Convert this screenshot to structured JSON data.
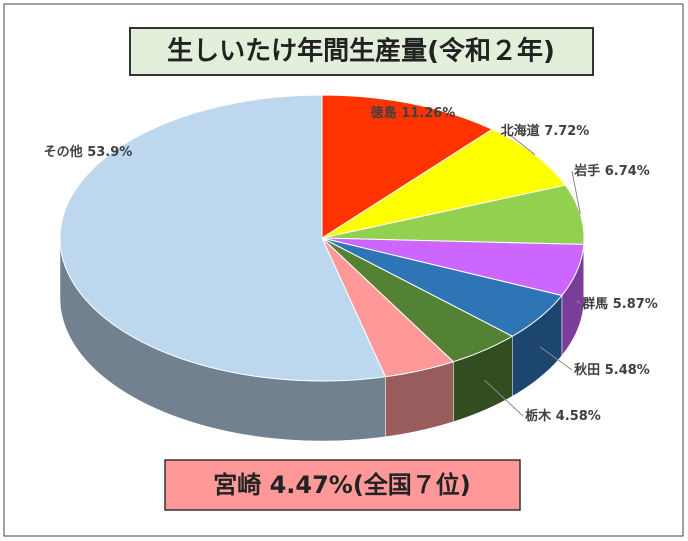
{
  "chart_data": {
    "type": "pie3d",
    "title": "生しいたけ年間生産量(令和２年)",
    "categories": [
      "徳島",
      "北海道",
      "岩手",
      "群馬",
      "秋田",
      "栃木",
      "宮崎",
      "その他"
    ],
    "values": [
      11.26,
      7.72,
      6.74,
      5.87,
      5.48,
      4.58,
      4.47,
      53.9
    ],
    "value_labels": [
      "11.26%",
      "7.72%",
      "6.74%",
      "5.87%",
      "5.48%",
      "4.58%",
      "4.47%",
      "53.9%"
    ],
    "colors": [
      "#ff3300",
      "#ffff00",
      "#92d050",
      "#cc66ff",
      "#2e75b6",
      "#548235",
      "#ff9999",
      "#bdd7ee"
    ],
    "annotation": "(全国７位)"
  }
}
